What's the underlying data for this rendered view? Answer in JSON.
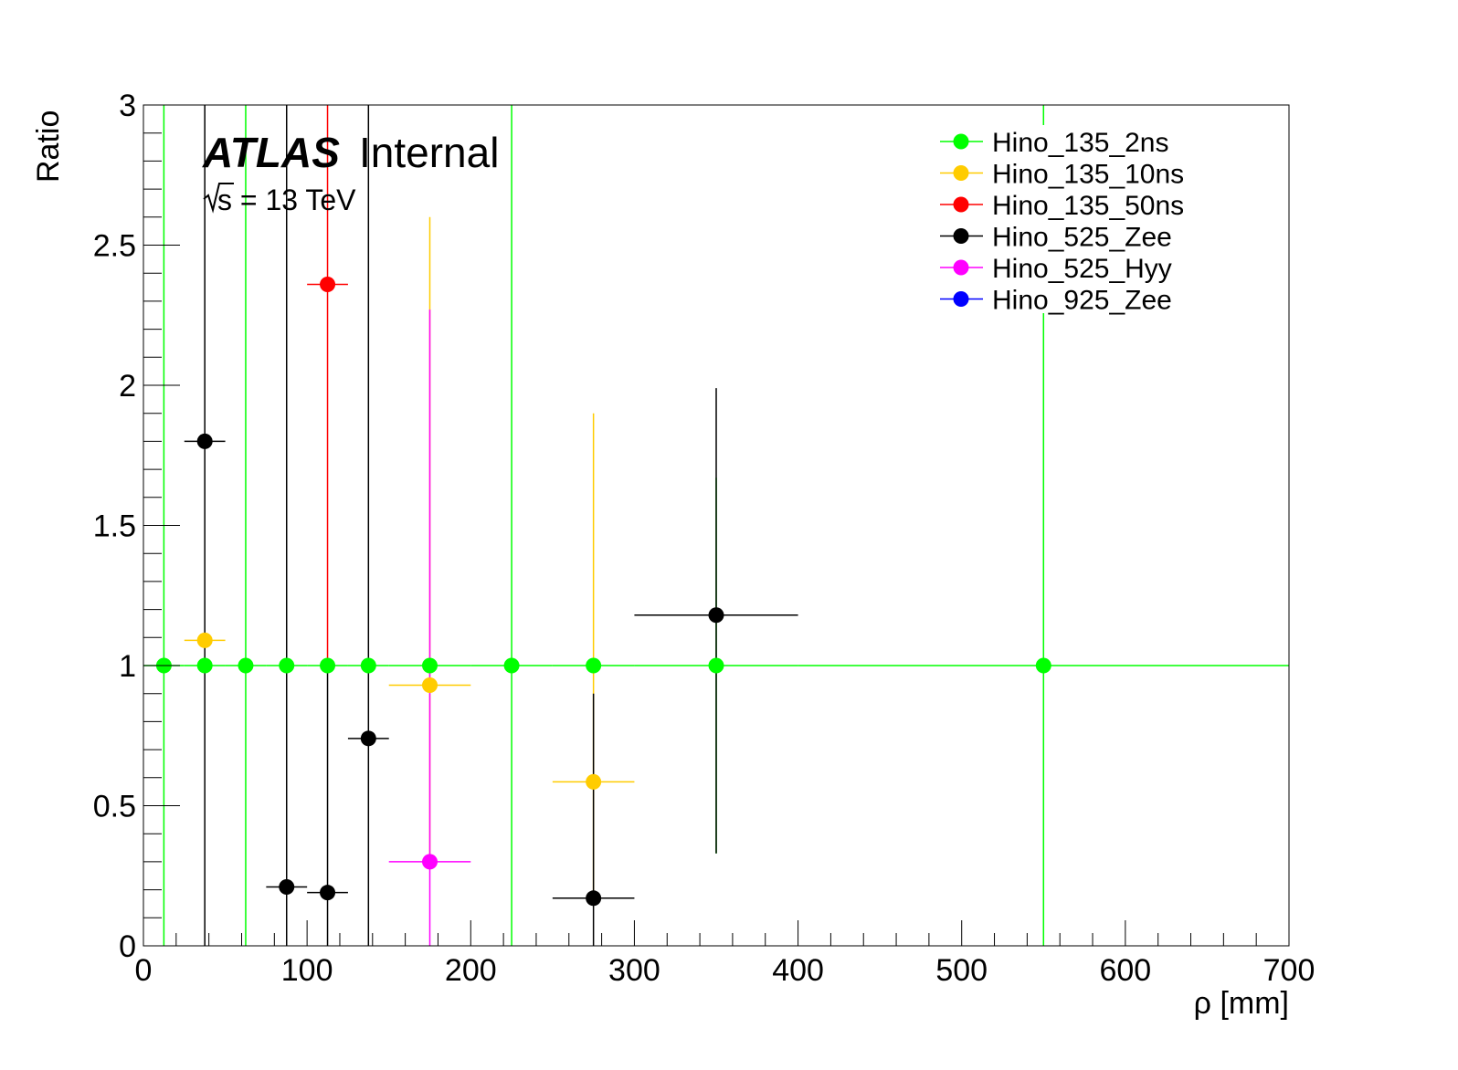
{
  "chart_data": {
    "type": "scatter",
    "title": "",
    "xlabel": "ρ [mm]",
    "ylabel": "Ratio",
    "xlim": [
      0,
      700
    ],
    "ylim": [
      0,
      3
    ],
    "x_ticks": [
      "0",
      "100",
      "200",
      "300",
      "400",
      "500",
      "600",
      "700"
    ],
    "y_ticks": [
      "0",
      "0.5",
      "1",
      "1.5",
      "2",
      "2.5",
      "3"
    ],
    "grid": false,
    "legend_position": "top-right",
    "annotation": {
      "atlas": "ATLAS",
      "status": "Internal",
      "energy": "s = 13 TeV"
    },
    "series": [
      {
        "name": "Hino_135_2ns",
        "color": "#00ff00",
        "points": [
          {
            "x": 12.5,
            "xlo": 0,
            "xhi": 25,
            "y": 1,
            "ylo": 0,
            "yhi": 3
          },
          {
            "x": 37.5,
            "xlo": 25,
            "xhi": 50,
            "y": 1,
            "ylo": 1,
            "yhi": 1
          },
          {
            "x": 62.5,
            "xlo": 50,
            "xhi": 75,
            "y": 1,
            "ylo": 0,
            "yhi": 3
          },
          {
            "x": 87.5,
            "xlo": 75,
            "xhi": 100,
            "y": 1,
            "ylo": 1,
            "yhi": 1
          },
          {
            "x": 112.5,
            "xlo": 100,
            "xhi": 125,
            "y": 1,
            "ylo": 1,
            "yhi": 1
          },
          {
            "x": 137.5,
            "xlo": 125,
            "xhi": 150,
            "y": 1,
            "ylo": 1,
            "yhi": 1
          },
          {
            "x": 175,
            "xlo": 150,
            "xhi": 200,
            "y": 1,
            "ylo": 1,
            "yhi": 1
          },
          {
            "x": 225,
            "xlo": 200,
            "xhi": 250,
            "y": 1,
            "ylo": 0,
            "yhi": 3
          },
          {
            "x": 275,
            "xlo": 250,
            "xhi": 300,
            "y": 1,
            "ylo": 1,
            "yhi": 1
          },
          {
            "x": 350,
            "xlo": 300,
            "xhi": 400,
            "y": 1,
            "ylo": 0.33,
            "yhi": 1.67
          },
          {
            "x": 550,
            "xlo": 400,
            "xhi": 700,
            "y": 1,
            "ylo": 0,
            "yhi": 3
          }
        ]
      },
      {
        "name": "Hino_135_10ns",
        "color": "#ffcc00",
        "points": [
          {
            "x": 37.5,
            "xlo": 25,
            "xhi": 50,
            "y": 1.09,
            "ylo": 1.09,
            "yhi": 1.09
          },
          {
            "x": 175,
            "xlo": 150,
            "xhi": 200,
            "y": 0.93,
            "ylo": 0.3,
            "yhi": 2.6
          },
          {
            "x": 275,
            "xlo": 250,
            "xhi": 300,
            "y": 0.585,
            "ylo": 0.17,
            "yhi": 1.9
          }
        ]
      },
      {
        "name": "Hino_135_50ns",
        "color": "#ff0000",
        "points": [
          {
            "x": 112.5,
            "xlo": 100,
            "xhi": 125,
            "y": 2.36,
            "ylo": 1.0,
            "yhi": 3
          }
        ]
      },
      {
        "name": "Hino_525_Zee",
        "color": "#000000",
        "points": [
          {
            "x": 37.5,
            "xlo": 25,
            "xhi": 50,
            "y": 1.8,
            "ylo": 0,
            "yhi": 3
          },
          {
            "x": 87.5,
            "xlo": 75,
            "xhi": 100,
            "y": 0.21,
            "ylo": 0,
            "yhi": 3
          },
          {
            "x": 112.5,
            "xlo": 100,
            "xhi": 125,
            "y": 0.19,
            "ylo": 0,
            "yhi": 1.0
          },
          {
            "x": 137.5,
            "xlo": 125,
            "xhi": 150,
            "y": 0.74,
            "ylo": 0,
            "yhi": 3
          },
          {
            "x": 275,
            "xlo": 250,
            "xhi": 300,
            "y": 0.17,
            "ylo": 0,
            "yhi": 0.9
          },
          {
            "x": 350,
            "xlo": 300,
            "xhi": 400,
            "y": 1.18,
            "ylo": 0.33,
            "yhi": 1.99
          }
        ]
      },
      {
        "name": "Hino_525_Hyy",
        "color": "#ff00ff",
        "points": [
          {
            "x": 175,
            "xlo": 150,
            "xhi": 200,
            "y": 0.3,
            "ylo": 0,
            "yhi": 2.27
          }
        ]
      },
      {
        "name": "Hino_925_Zee",
        "color": "#0000ff",
        "points": []
      }
    ]
  }
}
